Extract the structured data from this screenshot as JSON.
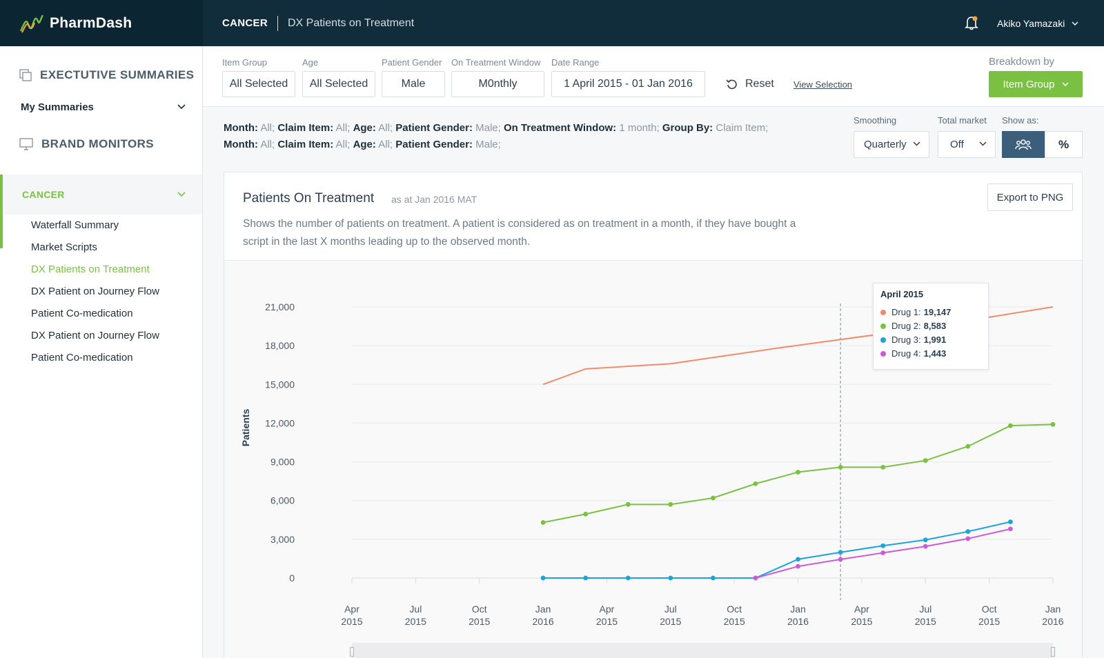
{
  "app": {
    "name": "PharmDash",
    "user": "Akiko Yamazaki"
  },
  "header": {
    "section": "CANCER",
    "page": "DX Patients on Treatment"
  },
  "sidebar": {
    "exec_summaries": "EXECTUTIVE SUMMARIES",
    "my_summaries": "My Summaries",
    "brand_monitors": "BRAND MONITORS",
    "cancer": "CANCER",
    "items": [
      {
        "label": "Waterfall Summary"
      },
      {
        "label": "Market Scripts"
      },
      {
        "label": "DX Patients on Treatment"
      },
      {
        "label": "DX Patient on Journey Flow"
      },
      {
        "label": "Patient Co-medication"
      },
      {
        "label": "DX Patient on Journey Flow"
      },
      {
        "label": "Patient Co-medication"
      }
    ]
  },
  "filters": {
    "item_group": {
      "label": "Item Group",
      "value": "All Selected"
    },
    "age": {
      "label": "Age",
      "value": "All Selected"
    },
    "gender": {
      "label": "Patient Gender",
      "value": "Male"
    },
    "window": {
      "label": "On Treatment Window",
      "value": "M0nthly"
    },
    "date_range": {
      "label": "Date Range",
      "value": "1 April 2015 - 01 Jan 2016"
    },
    "reset": "Reset",
    "view_selection": "View Selection",
    "breakdown_label": "Breakdown by",
    "breakdown_value": "Item Group"
  },
  "summary": {
    "line1": [
      {
        "k": "Month:",
        "v": "All;"
      },
      {
        "k": "Claim Item:",
        "v": "All;"
      },
      {
        "k": "Age:",
        "v": "All;"
      },
      {
        "k": "Patient Gender:",
        "v": "Male;"
      },
      {
        "k": "On Treatment Window:",
        "v": "1 month;"
      },
      {
        "k": "Group By:",
        "v": "Claim Item;"
      }
    ],
    "line2": [
      {
        "k": "Month:",
        "v": "All;"
      },
      {
        "k": "Claim Item:",
        "v": "All;"
      },
      {
        "k": "Age:",
        "v": "All;"
      },
      {
        "k": "Patient Gender:",
        "v": "Male;"
      }
    ]
  },
  "controls": {
    "smoothing_label": "Smoothing",
    "smoothing_value": "Quarterly",
    "total_market_label": "Total market",
    "total_market_value": "Off",
    "show_as_label": "Show as:",
    "show_as_percent": "%"
  },
  "card": {
    "title": "Patients On Treatment",
    "subtitle": "as at Jan 2016 MAT",
    "description": "Shows the number of patients on treatment. A patient is considered as on treatment in a month, if they have bought a script in the last X months leading up to the observed month.",
    "export": "Export to PNG"
  },
  "tooltip": {
    "title": "April 2015",
    "rows": [
      {
        "name": "Drug 1:",
        "value": "19,147"
      },
      {
        "name": "Drug 2:",
        "value": "8,583"
      },
      {
        "name": "Drug 3:",
        "value": "1,991"
      },
      {
        "name": "Drug 4:",
        "value": "1,443"
      }
    ]
  },
  "colors": {
    "accent": "#7ac143",
    "drug1": "#f4896b",
    "drug2": "#7ac143",
    "drug3": "#1fa3d6",
    "drug4": "#cc5bd6",
    "navy": "#112d3c"
  },
  "chart_data": {
    "type": "line",
    "title": "",
    "ylabel": "Patients",
    "ylim": [
      0,
      21000
    ],
    "yticks": [
      "0",
      "3,000",
      "6,000",
      "9,000",
      "12,000",
      "15,000",
      "18,000",
      "21,000"
    ],
    "xticks": [
      [
        "Apr",
        "2015"
      ],
      [
        "Jul",
        "2015"
      ],
      [
        "Oct",
        "2015"
      ],
      [
        "Jan",
        "2016"
      ],
      [
        "Apr",
        "2015"
      ],
      [
        "Jul",
        "2015"
      ],
      [
        "Oct",
        "2015"
      ],
      [
        "Jan",
        "2016"
      ],
      [
        "Apr",
        "2015"
      ],
      [
        "Jul",
        "2015"
      ],
      [
        "Oct",
        "2015"
      ],
      [
        "Jan",
        "2016"
      ]
    ],
    "x_range": [
      0,
      33
    ],
    "series": [
      {
        "name": "Drug 1",
        "color": "#f4896b",
        "markers": false,
        "x": [
          9,
          11,
          15,
          20,
          26,
          33
        ],
        "y": [
          15000,
          16200,
          16600,
          17800,
          19147,
          21000
        ]
      },
      {
        "name": "Drug 2",
        "color": "#7ac143",
        "markers": true,
        "x": [
          9,
          11,
          13,
          15,
          17,
          19,
          21,
          23,
          25,
          27,
          29,
          31,
          33
        ],
        "y": [
          4300,
          4950,
          5700,
          5700,
          6200,
          7300,
          8200,
          8583,
          8583,
          9100,
          10200,
          11800,
          11900
        ]
      },
      {
        "name": "Drug 3",
        "color": "#1fa3d6",
        "markers": true,
        "x": [
          9,
          11,
          13,
          15,
          17,
          19,
          21,
          23,
          25,
          27,
          29,
          31
        ],
        "y": [
          0,
          0,
          0,
          0,
          0,
          0,
          1450,
          1991,
          2500,
          2950,
          3600,
          4350
        ]
      },
      {
        "name": "Drug 4",
        "color": "#cc5bd6",
        "markers": true,
        "x": [
          19,
          21,
          23,
          25,
          27,
          29,
          31
        ],
        "y": [
          0,
          900,
          1443,
          1950,
          2450,
          3050,
          3800
        ]
      }
    ],
    "highlight_x": 23,
    "legend": "tooltip"
  }
}
